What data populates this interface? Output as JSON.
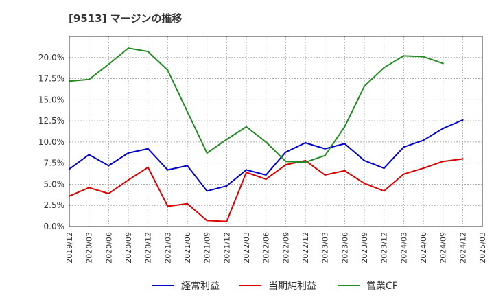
{
  "chart_data": {
    "type": "line",
    "title": "[9513]  マージンの推移",
    "xlabel": "",
    "ylabel": "",
    "ylim": [
      0,
      22.5
    ],
    "y_ticks": [
      "0.0%",
      "2.5%",
      "5.0%",
      "7.5%",
      "10.0%",
      "12.5%",
      "15.0%",
      "17.5%",
      "20.0%"
    ],
    "x_ticks": [
      "2019/12",
      "2020/03",
      "2020/06",
      "2020/09",
      "2020/12",
      "2021/03",
      "2021/06",
      "2021/09",
      "2021/12",
      "2022/03",
      "2022/06",
      "2022/09",
      "2022/12",
      "2023/03",
      "2023/06",
      "2023/09",
      "2023/12",
      "2024/03",
      "2024/06",
      "2024/09",
      "2024/12",
      "2025/03"
    ],
    "grid": true,
    "legend_position": "bottom",
    "series": [
      {
        "name": "経常利益",
        "color": "#0000cc",
        "values": [
          6.8,
          8.5,
          7.2,
          8.7,
          9.2,
          6.7,
          7.2,
          4.2,
          4.8,
          6.7,
          6.1,
          8.8,
          9.9,
          9.2,
          9.8,
          7.8,
          6.9,
          9.4,
          10.2,
          11.6,
          12.6,
          null
        ]
      },
      {
        "name": "当期純利益",
        "color": "#dd0000",
        "values": [
          3.6,
          4.6,
          3.9,
          5.5,
          7.0,
          2.4,
          2.7,
          0.7,
          0.6,
          6.4,
          5.6,
          7.3,
          7.8,
          6.1,
          6.6,
          5.1,
          4.2,
          6.2,
          6.9,
          7.7,
          8.0,
          null
        ]
      },
      {
        "name": "営業CF",
        "color": "#228b22",
        "values": [
          17.2,
          17.4,
          19.2,
          21.1,
          20.7,
          18.5,
          13.6,
          8.7,
          10.3,
          11.8,
          10.0,
          7.7,
          7.6,
          8.4,
          11.8,
          16.6,
          18.8,
          20.2,
          20.1,
          19.3,
          null,
          null
        ]
      }
    ]
  }
}
